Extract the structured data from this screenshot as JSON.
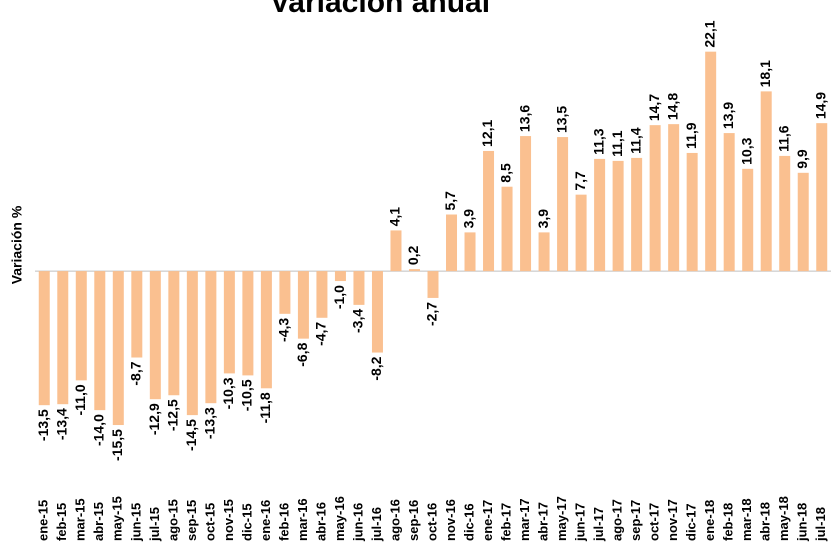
{
  "chart_data": {
    "type": "bar",
    "title": "Variación anual",
    "y_label": "Variación %",
    "categories": [
      "ene-15",
      "feb-15",
      "mar-15",
      "abr-15",
      "may-15",
      "jun-15",
      "jul-15",
      "ago-15",
      "sep-15",
      "oct-15",
      "nov-15",
      "dic-15",
      "ene-16",
      "feb-16",
      "mar-16",
      "abr-16",
      "may-16",
      "jun-16",
      "jul-16",
      "ago-16",
      "sep-16",
      "oct-16",
      "nov-16",
      "dic-16",
      "ene-17",
      "feb-17",
      "mar-17",
      "abr-17",
      "may-17",
      "jun-17",
      "jul-17",
      "ago-17",
      "sep-17",
      "oct-17",
      "nov-17",
      "dic-17",
      "ene-18",
      "feb-18",
      "mar-18",
      "abr-18",
      "may-18",
      "jun-18",
      "jul-18"
    ],
    "values": [
      -13.5,
      -13.4,
      -11.0,
      -14.0,
      -15.5,
      -8.7,
      -12.9,
      -12.5,
      -14.5,
      -13.3,
      -10.3,
      -10.5,
      -11.8,
      -4.3,
      -6.8,
      -4.7,
      -1.0,
      -3.4,
      -8.2,
      4.1,
      0.2,
      -2.7,
      5.7,
      3.9,
      12.1,
      8.5,
      13.6,
      3.9,
      13.5,
      7.7,
      11.3,
      11.1,
      11.4,
      14.7,
      14.8,
      11.9,
      22.1,
      13.9,
      10.3,
      18.1,
      11.6,
      9.9,
      14.9
    ],
    "value_labels": [
      "-13,5",
      "-13,4",
      "-11,0",
      "-14,0",
      "-15,5",
      "-8,7",
      "-12,9",
      "-12,5",
      "-14,5",
      "-13,3",
      "-10,3",
      "-10,5",
      "-11,8",
      "-4,3",
      "-6,8",
      "-4,7",
      "-1,0",
      "-3,4",
      "-8,2",
      "4,1",
      "0,2",
      "-2,7",
      "5,7",
      "3,9",
      "12,1",
      "8,5",
      "13,6",
      "3,9",
      "13,5",
      "7,7",
      "11,3",
      "11,1",
      "11,4",
      "14,7",
      "14,8",
      "11,9",
      "22,1",
      "13,9",
      "10,3",
      "18,1",
      "11,6",
      "9,9",
      "14,9"
    ],
    "color": "#fac090",
    "ylim": [
      -16,
      27
    ]
  }
}
